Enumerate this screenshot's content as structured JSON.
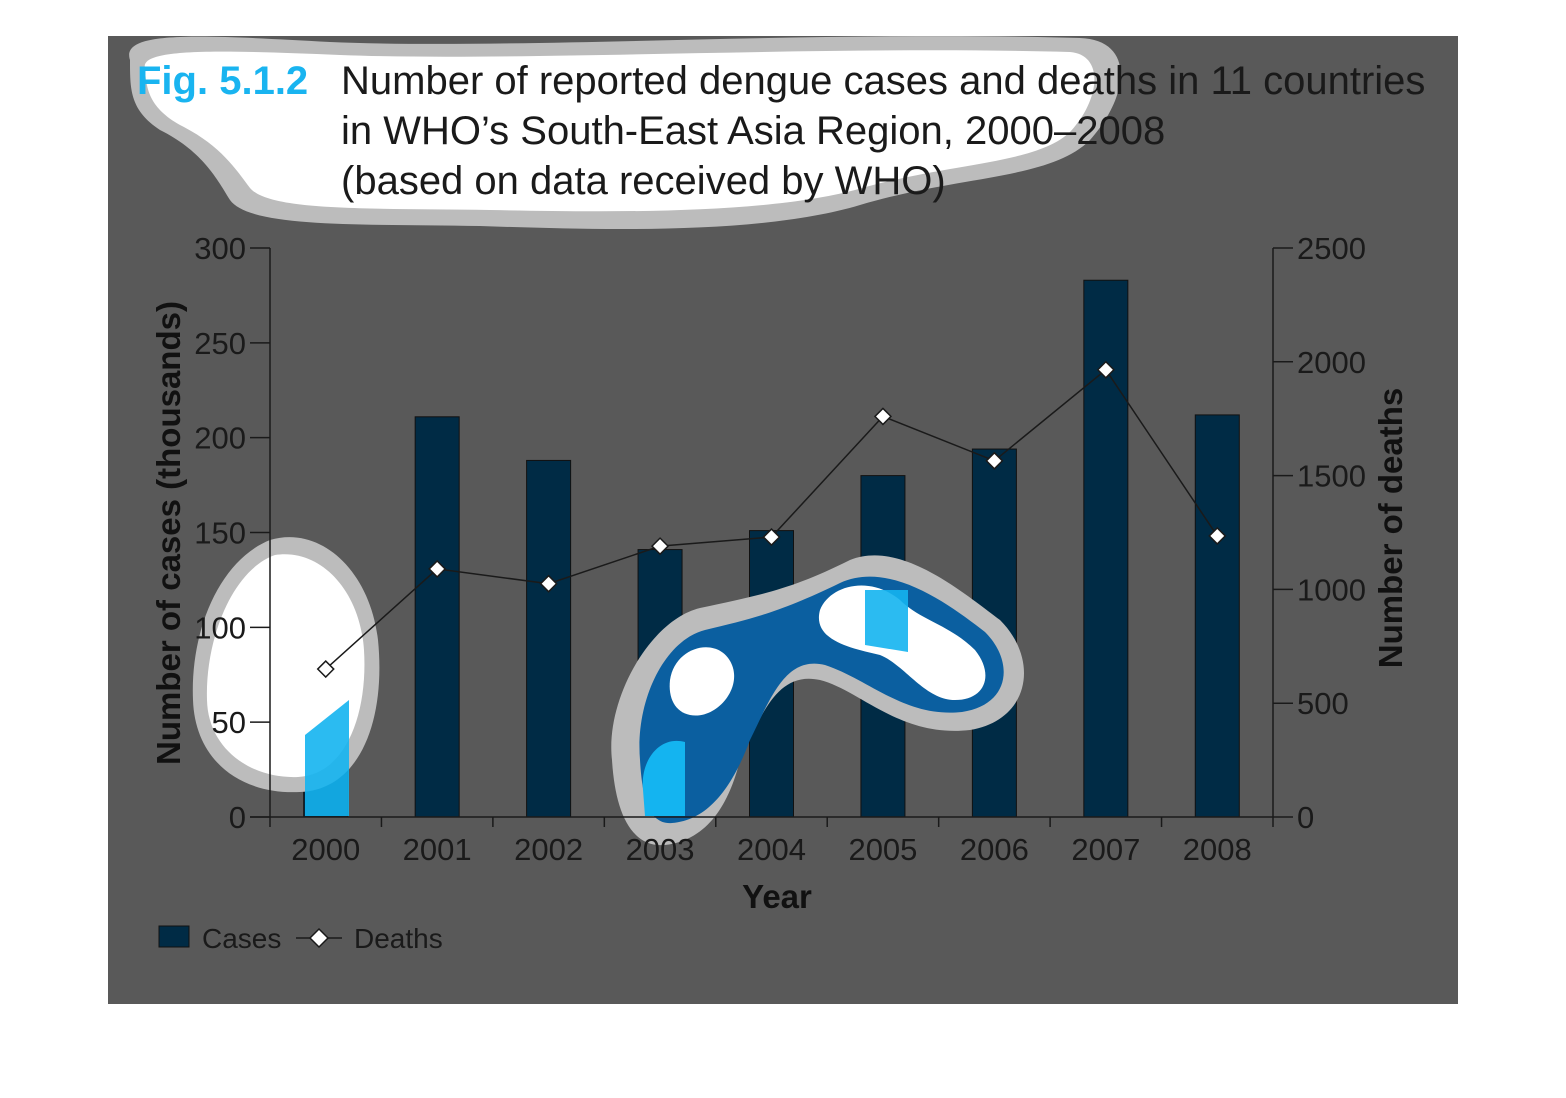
{
  "figure": {
    "label": "Fig. 5.1.2",
    "title_lines": [
      "Number of reported dengue cases and deaths in 11 countries",
      "in WHO’s South-East Asia Region, 2000–2008",
      "(based on data received by WHO)"
    ]
  },
  "chart_data": {
    "type": "bar",
    "title": "Number of reported dengue cases and deaths in 11 countries in WHO’s South-East Asia Region, 2000–2008 (based on data received by WHO)",
    "categories": [
      "2000",
      "2001",
      "2002",
      "2003",
      "2004",
      "2005",
      "2006",
      "2007",
      "2008"
    ],
    "xlabel": "Year",
    "ylabel": "Number of cases (thousands)",
    "ylabel_right": "Number of deaths",
    "ylim": [
      0,
      300
    ],
    "ylim_right": [
      0,
      2500
    ],
    "yticks": [
      "0",
      "50",
      "100",
      "150",
      "200",
      "250",
      "300"
    ],
    "yticks_right": [
      "0",
      "500",
      "1000",
      "1500",
      "2000",
      "2500"
    ],
    "series": [
      {
        "name": "Cases",
        "type": "bar",
        "axis": "left",
        "color": "#002b45",
        "values": [
          63,
          211,
          188,
          141,
          151,
          180,
          194,
          283,
          212
        ]
      },
      {
        "name": "Deaths",
        "type": "line",
        "axis": "right",
        "color": "#1a1a1a",
        "marker": "diamond",
        "values": [
          650,
          1090,
          1025,
          1190,
          1230,
          1760,
          1565,
          1965,
          1235
        ]
      }
    ],
    "legend": {
      "position": "bottom-left",
      "entries": [
        "Cases",
        "Deaths"
      ]
    },
    "grid": false
  }
}
